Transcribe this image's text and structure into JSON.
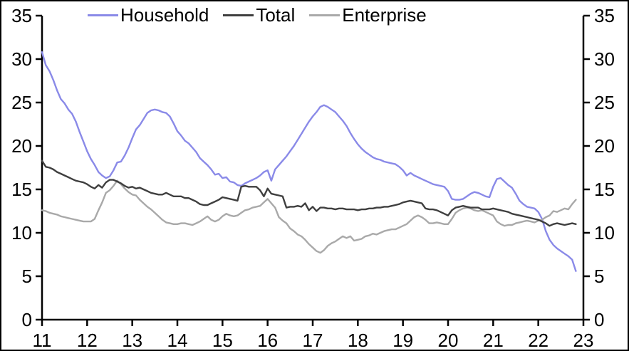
{
  "chart_data": {
    "type": "line",
    "title": "",
    "xlabel": "",
    "ylabel": "",
    "x_axis_note": "years 2011-2023, monthly observations",
    "xlim": [
      11,
      23
    ],
    "ylim": [
      0,
      35
    ],
    "x_ticks": [
      11,
      12,
      13,
      14,
      15,
      16,
      17,
      18,
      19,
      20,
      21,
      22,
      23
    ],
    "x_tick_labels": [
      "11",
      "12",
      "13",
      "14",
      "15",
      "16",
      "17",
      "18",
      "19",
      "20",
      "21",
      "22",
      "23"
    ],
    "y_ticks": [
      0,
      5,
      10,
      15,
      20,
      25,
      30,
      35
    ],
    "y_tick_labels": [
      "0",
      "5",
      "10",
      "15",
      "20",
      "25",
      "30",
      "35"
    ],
    "dual_y_labels": true,
    "grid": false,
    "legend_position": "top",
    "background": "#ffffff",
    "axis_color": "#000000",
    "x_start": 11.0,
    "x_step": 0.0833333,
    "series": [
      {
        "name": "Household",
        "color": "#8a8ae8",
        "values": [
          30.8,
          29.3,
          28.6,
          27.6,
          26.4,
          25.4,
          24.9,
          24.2,
          23.7,
          22.8,
          21.6,
          20.5,
          19.4,
          18.5,
          17.8,
          17.0,
          16.6,
          16.3,
          16.5,
          17.2,
          18.1,
          18.2,
          18.9,
          19.8,
          20.9,
          21.9,
          22.4,
          23.1,
          23.8,
          24.1,
          24.2,
          24.1,
          23.9,
          23.8,
          23.4,
          22.6,
          21.7,
          21.2,
          20.6,
          20.3,
          19.8,
          19.3,
          18.6,
          18.2,
          17.8,
          17.3,
          16.7,
          16.8,
          16.3,
          16.4,
          15.9,
          15.8,
          15.5,
          15.4,
          15.7,
          15.9,
          16.1,
          16.3,
          16.6,
          17.0,
          17.2,
          16.0,
          17.3,
          17.8,
          18.3,
          18.8,
          19.4,
          20.0,
          20.7,
          21.4,
          22.1,
          22.8,
          23.4,
          23.9,
          24.5,
          24.7,
          24.5,
          24.2,
          23.9,
          23.4,
          22.9,
          22.3,
          21.5,
          20.8,
          20.2,
          19.7,
          19.3,
          19.0,
          18.7,
          18.5,
          18.4,
          18.2,
          18.1,
          18.0,
          17.9,
          17.6,
          17.2,
          16.6,
          16.9,
          16.6,
          16.4,
          16.2,
          16.0,
          15.8,
          15.6,
          15.5,
          15.4,
          15.3,
          14.8,
          13.9,
          13.8,
          13.8,
          13.9,
          14.2,
          14.5,
          14.7,
          14.6,
          14.4,
          14.2,
          14.1,
          15.3,
          16.2,
          16.3,
          15.9,
          15.5,
          15.2,
          14.5,
          13.7,
          13.3,
          13.0,
          12.9,
          12.8,
          12.4,
          11.6,
          10.2,
          9.2,
          8.6,
          8.2,
          7.9,
          7.6,
          7.3,
          6.9,
          5.6
        ]
      },
      {
        "name": "Total",
        "color": "#3f3f3f",
        "values": [
          18.3,
          17.6,
          17.5,
          17.3,
          17.0,
          16.8,
          16.6,
          16.4,
          16.2,
          16.0,
          15.9,
          15.8,
          15.6,
          15.3,
          15.1,
          15.5,
          15.2,
          15.8,
          16.1,
          16.1,
          15.9,
          15.7,
          15.4,
          15.2,
          15.3,
          15.1,
          15.2,
          15.0,
          14.8,
          14.6,
          14.5,
          14.4,
          14.4,
          14.6,
          14.4,
          14.2,
          14.2,
          14.2,
          14.0,
          14.0,
          13.8,
          13.6,
          13.3,
          13.2,
          13.2,
          13.4,
          13.6,
          13.8,
          14.1,
          14.0,
          13.9,
          13.8,
          13.7,
          15.3,
          15.4,
          15.3,
          15.3,
          15.3,
          14.9,
          14.2,
          15.1,
          14.5,
          14.4,
          14.3,
          14.2,
          12.9,
          13.0,
          13.0,
          13.1,
          13.0,
          13.4,
          12.6,
          13.0,
          12.5,
          12.9,
          12.9,
          12.8,
          12.8,
          12.7,
          12.8,
          12.8,
          12.7,
          12.7,
          12.7,
          12.6,
          12.7,
          12.7,
          12.8,
          12.8,
          12.9,
          12.9,
          13.0,
          13.0,
          13.1,
          13.2,
          13.3,
          13.5,
          13.6,
          13.7,
          13.6,
          13.5,
          13.4,
          12.8,
          12.7,
          12.7,
          12.6,
          12.4,
          12.2,
          12.0,
          12.6,
          12.9,
          13.0,
          13.1,
          13.0,
          12.9,
          12.9,
          12.9,
          12.7,
          12.7,
          12.7,
          12.8,
          12.7,
          12.6,
          12.5,
          12.4,
          12.2,
          12.1,
          12.0,
          11.9,
          11.8,
          11.7,
          11.6,
          11.5,
          11.3,
          11.1,
          10.8,
          11.0,
          11.1,
          11.0,
          10.9,
          11.0,
          11.1,
          11.0
        ]
      },
      {
        "name": "Enterprise",
        "color": "#a9a9a9",
        "values": [
          12.6,
          12.5,
          12.3,
          12.2,
          12.1,
          11.9,
          11.8,
          11.7,
          11.6,
          11.5,
          11.4,
          11.3,
          11.3,
          11.3,
          11.6,
          12.6,
          13.5,
          14.6,
          14.9,
          15.4,
          16.0,
          15.6,
          15.1,
          14.7,
          14.4,
          14.3,
          13.8,
          13.4,
          13.0,
          12.7,
          12.3,
          11.9,
          11.5,
          11.2,
          11.1,
          11.0,
          11.0,
          11.1,
          11.1,
          11.0,
          10.9,
          11.1,
          11.3,
          11.6,
          11.9,
          11.5,
          11.3,
          11.5,
          11.9,
          12.2,
          12.0,
          11.9,
          12.0,
          12.3,
          12.6,
          12.7,
          12.9,
          13.0,
          13.1,
          13.5,
          13.9,
          13.4,
          12.9,
          11.8,
          11.4,
          11.1,
          10.5,
          10.2,
          9.8,
          9.6,
          9.2,
          8.7,
          8.3,
          7.9,
          7.7,
          8.0,
          8.5,
          8.8,
          9.0,
          9.3,
          9.6,
          9.4,
          9.6,
          9.1,
          9.2,
          9.3,
          9.6,
          9.7,
          9.9,
          9.8,
          10.0,
          10.2,
          10.3,
          10.4,
          10.4,
          10.6,
          10.8,
          11.0,
          11.4,
          11.8,
          12.0,
          11.8,
          11.5,
          11.1,
          11.1,
          11.2,
          11.1,
          11.0,
          11.0,
          11.6,
          12.3,
          12.6,
          12.8,
          12.9,
          12.8,
          12.6,
          12.5,
          12.6,
          12.4,
          12.2,
          12.0,
          11.3,
          11.0,
          10.8,
          10.9,
          10.9,
          11.1,
          11.2,
          11.3,
          11.4,
          11.3,
          11.2,
          11.4,
          11.5,
          11.8,
          12.0,
          12.5,
          12.4,
          12.6,
          12.8,
          12.7,
          13.3,
          13.8
        ]
      }
    ],
    "draw_order": [
      "Household",
      "Enterprise",
      "Total"
    ]
  },
  "legend": {
    "items": [
      {
        "label": "Household",
        "color": "#8a8ae8"
      },
      {
        "label": "Total",
        "color": "#3f3f3f"
      },
      {
        "label": "Enterprise",
        "color": "#a9a9a9"
      }
    ]
  }
}
